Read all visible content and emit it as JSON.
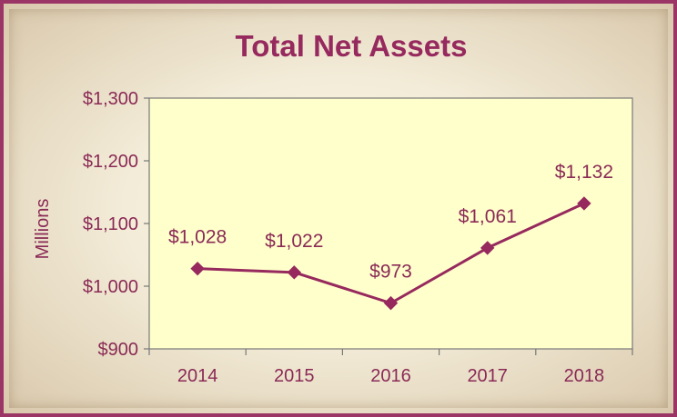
{
  "chart_data": {
    "type": "line",
    "title": "Total Net Assets",
    "ylabel": "Millions",
    "xlabel": "",
    "categories": [
      "2014",
      "2015",
      "2016",
      "2017",
      "2018"
    ],
    "series": [
      {
        "values": [
          1028,
          1022,
          973,
          1061,
          1132
        ],
        "data_labels": [
          "$1,028",
          "$1,022",
          "$973",
          "$1,061",
          "$1,132"
        ]
      }
    ],
    "ylim": [
      900,
      1300
    ],
    "yticks": [
      900,
      1000,
      1100,
      1200,
      1300
    ],
    "ytick_labels": [
      "$900",
      "$1,000",
      "$1,100",
      "$1,200",
      "$1,300"
    ],
    "grid": false,
    "legend": "none",
    "colors": {
      "line": "#96295d",
      "plot_background": "#ffffcc",
      "frame_border": "#9b3566",
      "text": "#8a2a55"
    }
  }
}
